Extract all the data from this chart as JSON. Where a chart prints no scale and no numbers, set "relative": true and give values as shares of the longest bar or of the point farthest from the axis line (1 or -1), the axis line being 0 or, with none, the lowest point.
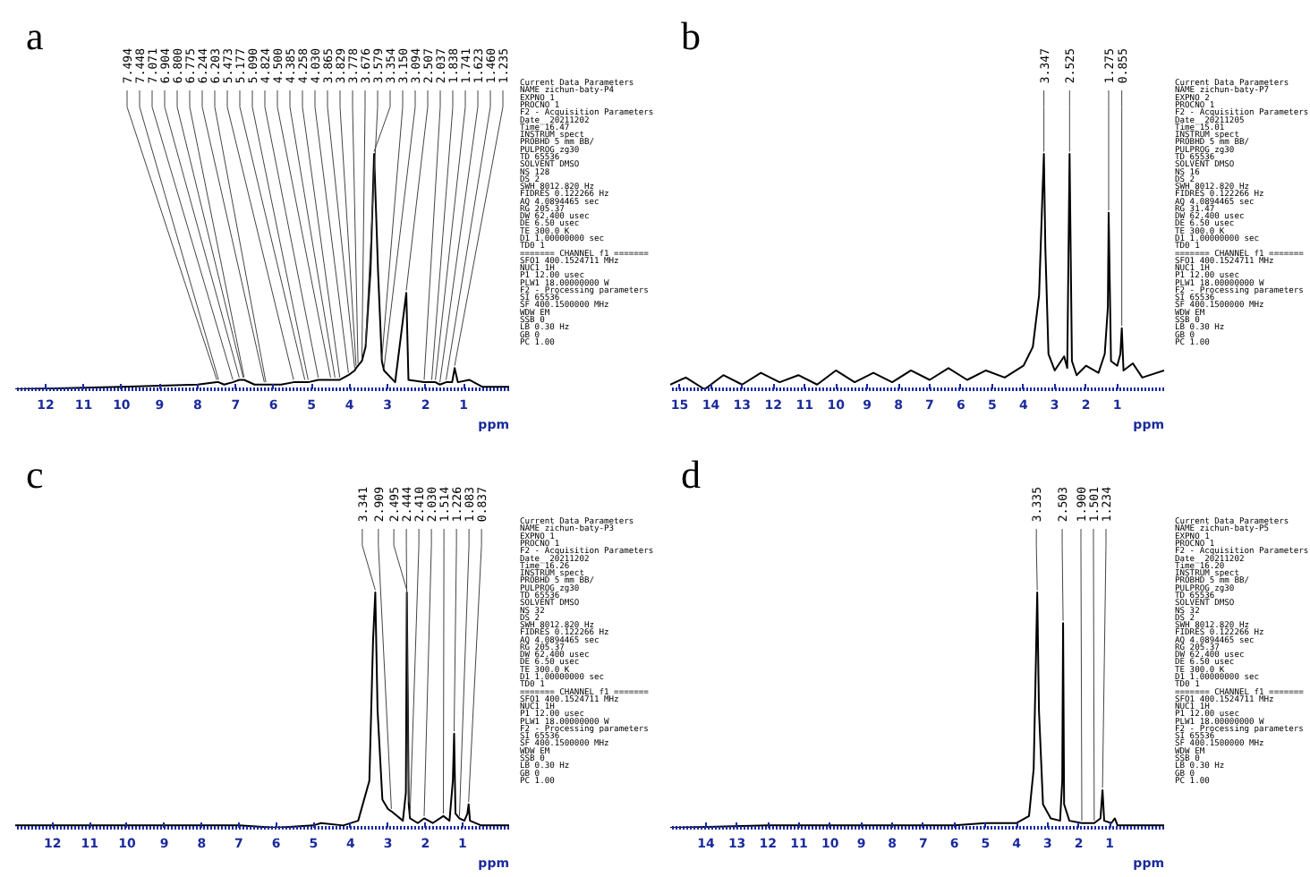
{
  "chart_data": [
    {
      "type": "line",
      "title": "a",
      "xlabel": "ppm",
      "relative": true,
      "tick_labels": "x",
      "xlim": [
        12.8,
        -0.2
      ],
      "xticks": [
        12,
        11,
        10,
        9,
        8,
        7,
        6,
        5,
        4,
        3,
        2,
        1
      ],
      "x": [
        12.8,
        10,
        8,
        7.494,
        7.448,
        7.3,
        7.071,
        6.904,
        6.8,
        6.775,
        6.5,
        6.244,
        6.203,
        5.8,
        5.473,
        5.177,
        5.09,
        4.824,
        4.5,
        4.385,
        4.258,
        4.03,
        3.865,
        3.829,
        3.778,
        3.676,
        3.579,
        3.45,
        3.354,
        3.25,
        3.15,
        3.094,
        2.8,
        2.507,
        2.45,
        2.037,
        1.838,
        1.741,
        1.623,
        1.46,
        1.3,
        1.235,
        1.15,
        0.85,
        0.5,
        -0.2
      ],
      "series": [
        {
          "color": "#000000",
          "values": [
            0,
            0.01,
            0.02,
            0.03,
            0.03,
            0.02,
            0.03,
            0.04,
            0.04,
            0.04,
            0.02,
            0.02,
            0.02,
            0.02,
            0.03,
            0.03,
            0.03,
            0.04,
            0.04,
            0.04,
            0.04,
            0.06,
            0.08,
            0.09,
            0.1,
            0.12,
            0.18,
            0.5,
            1,
            0.5,
            0.12,
            0.08,
            0.03,
            0.41,
            0.04,
            0.03,
            0.03,
            0.03,
            0.02,
            0.03,
            0.03,
            0.09,
            0.03,
            0.04,
            0.01,
            0.01
          ]
        }
      ],
      "annotations": [
        {
          "text": "7.494",
          "x": 7.494,
          "y": 0.03
        },
        {
          "text": "7.448",
          "x": 7.448,
          "y": 0.03
        },
        {
          "text": "7.071",
          "x": 7.071,
          "y": 0.03
        },
        {
          "text": "6.904",
          "x": 6.904,
          "y": 0.04
        },
        {
          "text": "6.800",
          "x": 6.8,
          "y": 0.04
        },
        {
          "text": "6.775",
          "x": 6.775,
          "y": 0.04
        },
        {
          "text": "6.244",
          "x": 6.244,
          "y": 0.02
        },
        {
          "text": "6.203",
          "x": 6.203,
          "y": 0.02
        },
        {
          "text": "5.473",
          "x": 5.473,
          "y": 0.03
        },
        {
          "text": "5.177",
          "x": 5.177,
          "y": 0.03
        },
        {
          "text": "5.090",
          "x": 5.09,
          "y": 0.03
        },
        {
          "text": "4.824",
          "x": 4.824,
          "y": 0.04
        },
        {
          "text": "4.500",
          "x": 4.5,
          "y": 0.04
        },
        {
          "text": "4.385",
          "x": 4.385,
          "y": 0.04
        },
        {
          "text": "4.258",
          "x": 4.258,
          "y": 0.04
        },
        {
          "text": "4.030",
          "x": 4.03,
          "y": 0.06
        },
        {
          "text": "3.865",
          "x": 3.865,
          "y": 0.08
        },
        {
          "text": "3.829",
          "x": 3.829,
          "y": 0.09
        },
        {
          "text": "3.778",
          "x": 3.778,
          "y": 0.1
        },
        {
          "text": "3.676",
          "x": 3.676,
          "y": 0.12
        },
        {
          "text": "3.579",
          "x": 3.579,
          "y": 0.18
        },
        {
          "text": "3.354",
          "x": 3.354,
          "y": 1
        },
        {
          "text": "3.150",
          "x": 3.15,
          "y": 0.12
        },
        {
          "text": "3.094",
          "x": 3.094,
          "y": 0.08
        },
        {
          "text": "2.507",
          "x": 2.507,
          "y": 0.41
        },
        {
          "text": "2.037",
          "x": 2.037,
          "y": 0.03
        },
        {
          "text": "1.838",
          "x": 1.838,
          "y": 0.03
        },
        {
          "text": "1.741",
          "x": 1.741,
          "y": 0.03
        },
        {
          "text": "1.623",
          "x": 1.623,
          "y": 0.02
        },
        {
          "text": "1.460",
          "x": 1.46,
          "y": 0.03
        },
        {
          "text": "1.235",
          "x": 1.235,
          "y": 0.09
        },
        "Current Data Parameters",
        "NAME    zichun-baty-P4",
        "EXPNO   1",
        "PROCNO  1",
        "F2 - Acquisition Parameters",
        "Date_   20211202",
        "Time    16.47",
        "INSTRUM spect",
        "PROBHD  5 mm BB/",
        "PULPROG zg30",
        "TD      65536",
        "SOLVENT DMSO",
        "NS      128",
        "DS      2",
        "SWH     8012.820 Hz",
        "FIDRES  0.122266 Hz",
        "AQ      4.0894465 sec",
        "RG      205.37",
        "DW      62.400 usec",
        "DE      6.50 usec",
        "TE      300.0 K",
        "D1      1.00000000 sec",
        "TD0     1",
        "======= CHANNEL f1 =======",
        "SFO1    400.1524711 MHz",
        "NUC1    1H",
        "P1      12.00 usec",
        "PLW1    18.00000000 W",
        "F2 - Processing parameters",
        "SI      65536",
        "SF      400.1500000 MHz",
        "WDW     EM",
        "SSB     0",
        "LB      0.30 Hz",
        "GB      0",
        "PC      1.00"
      ]
    },
    {
      "type": "line",
      "title": "b",
      "xlabel": "ppm",
      "relative": true,
      "tick_labels": "x",
      "xlim": [
        15.3,
        -0.5
      ],
      "xticks": [
        15,
        14,
        13,
        12,
        11,
        10,
        9,
        8,
        7,
        6,
        5,
        4,
        3,
        2,
        1
      ],
      "x": [
        15.3,
        14.8,
        14.2,
        13.6,
        13.0,
        12.4,
        11.8,
        11.2,
        10.6,
        10.0,
        9.4,
        8.8,
        8.2,
        7.6,
        7.0,
        6.4,
        5.8,
        5.2,
        4.6,
        4.0,
        3.7,
        3.5,
        3.4,
        3.347,
        3.3,
        3.2,
        3.0,
        2.7,
        2.6,
        2.525,
        2.45,
        2.3,
        2.0,
        1.6,
        1.4,
        1.3,
        1.275,
        1.2,
        1.0,
        0.9,
        0.855,
        0.8,
        0.5,
        0.2,
        -0.5
      ],
      "series": [
        {
          "color": "#000000",
          "values": [
            0.02,
            0.05,
            0,
            0.06,
            0.02,
            0.07,
            0.03,
            0.06,
            0.02,
            0.08,
            0.03,
            0.07,
            0.03,
            0.08,
            0.04,
            0.09,
            0.04,
            0.08,
            0.05,
            0.1,
            0.18,
            0.4,
            0.8,
            1,
            0.6,
            0.15,
            0.08,
            0.14,
            0.09,
            1,
            0.12,
            0.06,
            0.1,
            0.07,
            0.15,
            0.35,
            0.75,
            0.12,
            0.1,
            0.15,
            0.26,
            0.08,
            0.11,
            0.05,
            0.08
          ]
        }
      ],
      "annotations": [
        {
          "text": "3.347",
          "x": 3.347,
          "y": 1
        },
        {
          "text": "2.525",
          "x": 2.525,
          "y": 1
        },
        {
          "text": "1.275",
          "x": 1.275,
          "y": 0.75
        },
        {
          "text": "0.855",
          "x": 0.855,
          "y": 0.26
        },
        "Current Data Parameters",
        "NAME    zichun-baty-P7",
        "EXPNO   2",
        "PROCNO  1",
        "F2 - Acquisition Parameters",
        "Date_   20211205",
        "Time    15.01",
        "INSTRUM spect",
        "PROBHD  5 mm BB/",
        "PULPROG zg30",
        "TD      65536",
        "SOLVENT DMSO",
        "NS      16",
        "DS      2",
        "SWH     8012.820 Hz",
        "FIDRES  0.122266 Hz",
        "AQ      4.0894465 sec",
        "RG      31.47",
        "DW      62.400 usec",
        "DE      6.50 usec",
        "TE      300.0 K",
        "D1      1.00000000 sec",
        "TD0     1",
        "======= CHANNEL f1 =======",
        "SFO1    400.1524711 MHz",
        "NUC1    1H",
        "P1      12.00 usec",
        "PLW1    18.00000000 W",
        "F2 - Processing parameters",
        "SI      65536",
        "SF      400.1500000 MHz",
        "WDW     EM",
        "SSB     0",
        "LB      0.30 Hz",
        "GB      0",
        "PC      1.00"
      ]
    },
    {
      "type": "line",
      "title": "c",
      "xlabel": "ppm",
      "relative": true,
      "tick_labels": "x",
      "xlim": [
        13,
        -0.25
      ],
      "xticks": [
        12,
        11,
        10,
        9,
        8,
        7,
        6,
        5,
        4,
        3,
        2,
        1
      ],
      "x": [
        13,
        10,
        7,
        6,
        5,
        4.8,
        4.2,
        3.8,
        3.5,
        3.4,
        3.341,
        3.28,
        3.15,
        3.0,
        2.909,
        2.6,
        2.52,
        2.495,
        2.444,
        2.41,
        2.2,
        2.03,
        1.8,
        1.514,
        1.35,
        1.26,
        1.226,
        1.19,
        1.083,
        0.95,
        0.87,
        0.837,
        0.8,
        0.5,
        -0.25
      ],
      "series": [
        {
          "color": "#000000",
          "values": [
            0.01,
            0.01,
            0.01,
            0,
            0.01,
            0.02,
            0.01,
            0.03,
            0.2,
            0.8,
            1,
            0.5,
            0.12,
            0.08,
            0.07,
            0.03,
            0.15,
            1,
            0.1,
            0.04,
            0.02,
            0.04,
            0.02,
            0.05,
            0.03,
            0.2,
            0.4,
            0.06,
            0.04,
            0.03,
            0.06,
            0.1,
            0.03,
            0.01,
            0.01
          ]
        }
      ],
      "annotations": [
        {
          "text": "3.341",
          "x": 3.341,
          "y": 1
        },
        {
          "text": "2.909",
          "x": 2.909,
          "y": 0.07
        },
        {
          "text": "2.495",
          "x": 2.495,
          "y": 1
        },
        {
          "text": "2.444",
          "x": 2.444,
          "y": 0.1
        },
        {
          "text": "2.410",
          "x": 2.41,
          "y": 0.04
        },
        {
          "text": "2.030",
          "x": 2.03,
          "y": 0.04
        },
        {
          "text": "1.514",
          "x": 1.514,
          "y": 0.05
        },
        {
          "text": "1.226",
          "x": 1.226,
          "y": 0.4
        },
        {
          "text": "1.083",
          "x": 1.083,
          "y": 0.04
        },
        {
          "text": "0.837",
          "x": 0.837,
          "y": 0.1
        },
        "Current Data Parameters",
        "NAME    zichun-baty-P3",
        "EXPNO   1",
        "PROCNO  1",
        "F2 - Acquisition Parameters",
        "Date_   20211202",
        "Time    16.26",
        "INSTRUM spect",
        "PROBHD  5 mm BB/",
        "PULPROG zg30",
        "TD      65536",
        "SOLVENT DMSO",
        "NS      32",
        "DS      2",
        "SWH     8012.820 Hz",
        "FIDRES  0.122266 Hz",
        "AQ      4.0894465 sec",
        "RG      205.37",
        "DW      62.400 usec",
        "DE      6.50 usec",
        "TE      300.0 K",
        "D1      1.00000000 sec",
        "TD0     1",
        "======= CHANNEL f1 =======",
        "SFO1    400.1524711 MHz",
        "NUC1    1H",
        "P1      12.00 usec",
        "PLW1    18.00000000 W",
        "F2 - Processing parameters",
        "SI      65536",
        "SF      400.1500000 MHz",
        "WDW     EM",
        "SSB     0",
        "LB      0.30 Hz",
        "GB      0",
        "PC      1.00"
      ]
    },
    {
      "type": "line",
      "title": "d",
      "xlabel": "ppm",
      "relative": true,
      "tick_labels": "x",
      "xlim": [
        15.15,
        -0.75
      ],
      "xticks": [
        14,
        13,
        12,
        11,
        10,
        9,
        8,
        7,
        6,
        5,
        4,
        3,
        2,
        1
      ],
      "x": [
        15.15,
        12,
        9,
        6,
        5,
        4,
        3.6,
        3.45,
        3.38,
        3.335,
        3.28,
        3.15,
        2.9,
        2.6,
        2.53,
        2.503,
        2.47,
        2.3,
        1.9,
        1.501,
        1.3,
        1.234,
        1.18,
        0.95,
        0.84,
        0.75,
        0.4,
        -0.75
      ],
      "series": [
        {
          "color": "#000000",
          "values": [
            0,
            0.01,
            0.01,
            0.01,
            0.02,
            0.02,
            0.05,
            0.25,
            0.7,
            1,
            0.5,
            0.1,
            0.04,
            0.03,
            0.2,
            0.87,
            0.1,
            0.03,
            0.02,
            0.02,
            0.04,
            0.16,
            0.03,
            0.02,
            0.04,
            0.01,
            0.01,
            0.01
          ]
        }
      ],
      "annotations": [
        {
          "text": "3.335",
          "x": 3.335,
          "y": 1
        },
        {
          "text": "2.503",
          "x": 2.503,
          "y": 0.87
        },
        {
          "text": "1.900",
          "x": 1.9,
          "y": 0.02
        },
        {
          "text": "1.501",
          "x": 1.501,
          "y": 0.02
        },
        {
          "text": "1.234",
          "x": 1.234,
          "y": 0.16
        },
        "Current Data Parameters",
        "NAME    zichun-baty-P5",
        "EXPNO   1",
        "PROCNO  1",
        "F2 - Acquisition Parameters",
        "Date_   20211202",
        "Time    16.20",
        "INSTRUM spect",
        "PROBHD  5 mm BB/",
        "PULPROG zg30",
        "TD      65536",
        "SOLVENT DMSO",
        "NS      32",
        "DS      2",
        "SWH     8012.820 Hz",
        "FIDRES  0.122266 Hz",
        "AQ      4.0894465 sec",
        "RG      205.37",
        "DW      62.400 usec",
        "DE      6.50 usec",
        "TE      300.0 K",
        "D1      1.00000000 sec",
        "TD0     1",
        "======= CHANNEL f1 =======",
        "SFO1    400.1524711 MHz",
        "NUC1    1H",
        "P1      12.00 usec",
        "PLW1    18.00000000 W",
        "F2 - Processing parameters",
        "SI      65536",
        "SF      400.1500000 MHz",
        "WDW     EM",
        "SSB     0",
        "LB      0.30 Hz",
        "GB      0",
        "PC      1.00"
      ]
    }
  ]
}
